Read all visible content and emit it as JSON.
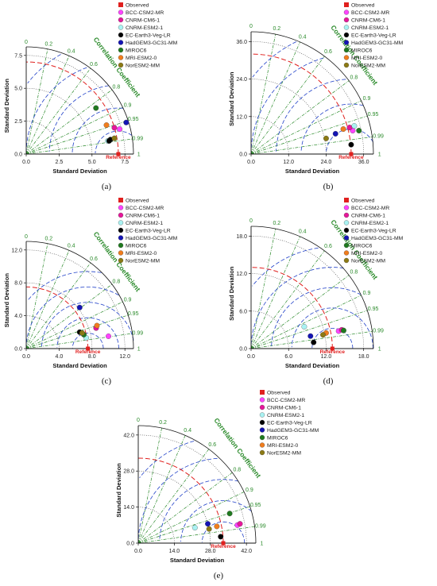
{
  "chart_data": [
    {
      "type": "scatter",
      "subtype": "taylor-diagram",
      "panel_label": "(a)",
      "xlabel": "Standard Deviation",
      "ylabel": "Standard Deviation",
      "correlation_label": "Correlation Coefficient",
      "reference_label": "Reference",
      "std_ticks": [
        "0.0",
        "2.5",
        "5.0",
        "7.5"
      ],
      "y_ticks": [
        "0.0",
        "2.5",
        "5.0",
        "7.5"
      ],
      "corr_ticks": [
        "0",
        "0.2",
        "0.4",
        "0.6",
        "0.8",
        "0.9",
        "0.95",
        "0.99",
        "1"
      ],
      "ref_std": 7.0,
      "points": [
        {
          "name": "BCC-CSM2-MR",
          "x": 7.1,
          "y": 1.9
        },
        {
          "name": "CNRM-CM6-1",
          "x": 6.7,
          "y": 2.0
        },
        {
          "name": "CNRM-ESM2-1",
          "x": 6.2,
          "y": 1.0
        },
        {
          "name": "EC-Earth3-Veg-LR",
          "x": 6.4,
          "y": 1.1
        },
        {
          "name": "HadGEM3-GC31-MM",
          "x": 7.6,
          "y": 2.4
        },
        {
          "name": "MIROC6",
          "x": 5.3,
          "y": 3.5
        },
        {
          "name": "MRI-ESM2-0",
          "x": 6.1,
          "y": 2.2
        },
        {
          "name": "NorESM2-MM",
          "x": 6.7,
          "y": 1.2
        },
        {
          "name": "EC-Earth3-Veg-LR",
          "x": 6.3,
          "y": 1.0
        }
      ]
    },
    {
      "type": "scatter",
      "subtype": "taylor-diagram",
      "panel_label": "(b)",
      "xlabel": "Standard Deviation",
      "ylabel": "Standard Deviation",
      "correlation_label": "Correlation Coefficient",
      "reference_label": "Reference",
      "std_ticks": [
        "0.0",
        "12.0",
        "24.0",
        "36.0"
      ],
      "y_ticks": [
        "0.0",
        "12.0",
        "24.0",
        "36.0"
      ],
      "corr_ticks": [
        "0",
        "0.2",
        "0.4",
        "0.6",
        "0.8",
        "0.9",
        "0.95",
        "0.99",
        "1"
      ],
      "ref_std": 32.0,
      "points": [
        {
          "name": "BCC-CSM2-MR",
          "x": 32.5,
          "y": 7.5
        },
        {
          "name": "CNRM-CM6-1",
          "x": 31.5,
          "y": 8.5
        },
        {
          "name": "CNRM-ESM2-1",
          "x": 33.0,
          "y": 9.0
        },
        {
          "name": "EC-Earth3-Veg-LR",
          "x": 32.0,
          "y": 3.0
        },
        {
          "name": "HadGEM3-GC31-MM",
          "x": 27.0,
          "y": 6.5
        },
        {
          "name": "MIROC6",
          "x": 34.5,
          "y": 7.5
        },
        {
          "name": "MRI-ESM2-0",
          "x": 29.5,
          "y": 8.0
        },
        {
          "name": "NorESM2-MM",
          "x": 24.0,
          "y": 5.0
        }
      ]
    },
    {
      "type": "scatter",
      "subtype": "taylor-diagram",
      "panel_label": "(c)",
      "xlabel": "Standard Deviation",
      "ylabel": "Standard Deviation",
      "correlation_label": "Correlation Coefficient",
      "reference_label": "Reference",
      "std_ticks": [
        "0.0",
        "4.0",
        "8.0",
        "12.0"
      ],
      "y_ticks": [
        "0.0",
        "4.0",
        "8.0",
        "12.0"
      ],
      "corr_ticks": [
        "0",
        "0.2",
        "0.4",
        "0.6",
        "0.8",
        "0.9",
        "0.95",
        "0.99",
        "1"
      ],
      "ref_std": 7.5,
      "points": [
        {
          "name": "BCC-CSM2-MR",
          "x": 10.0,
          "y": 1.5
        },
        {
          "name": "CNRM-CM6-1",
          "x": 8.5,
          "y": 2.5
        },
        {
          "name": "CNRM-ESM2-1",
          "x": 7.3,
          "y": 1.3
        },
        {
          "name": "EC-Earth3-Veg-LR",
          "x": 6.5,
          "y": 2.0
        },
        {
          "name": "HadGEM3-GC31-MM",
          "x": 6.5,
          "y": 5.0
        },
        {
          "name": "MIROC6",
          "x": 7.0,
          "y": 1.7
        },
        {
          "name": "MRI-ESM2-0",
          "x": 8.6,
          "y": 2.8
        },
        {
          "name": "NorESM2-MM",
          "x": 6.8,
          "y": 1.9
        }
      ]
    },
    {
      "type": "scatter",
      "subtype": "taylor-diagram",
      "panel_label": "(d)",
      "xlabel": "Standard Deviation",
      "ylabel": "Standard Deviation",
      "correlation_label": "Correlation Coefficient",
      "reference_label": "Reference",
      "std_ticks": [
        "0.0",
        "6.0",
        "12.0",
        "18.0"
      ],
      "y_ticks": [
        "0.0",
        "6.0",
        "12.0",
        "18.0"
      ],
      "corr_ticks": [
        "0",
        "0.2",
        "0.4",
        "0.6",
        "0.8",
        "0.9",
        "0.95",
        "0.99",
        "1"
      ],
      "ref_std": 13.0,
      "points": [
        {
          "name": "BCC-CSM2-MR",
          "x": 14.0,
          "y": 2.8
        },
        {
          "name": "CNRM-CM6-1",
          "x": 14.5,
          "y": 3.0
        },
        {
          "name": "CNRM-ESM2-1",
          "x": 8.5,
          "y": 3.5
        },
        {
          "name": "EC-Earth3-Veg-LR",
          "x": 10.0,
          "y": 1.0
        },
        {
          "name": "HadGEM3-GC31-MM",
          "x": 9.5,
          "y": 2.0
        },
        {
          "name": "MIROC6",
          "x": 14.8,
          "y": 2.9
        },
        {
          "name": "MRI-ESM2-0",
          "x": 12.0,
          "y": 2.5
        },
        {
          "name": "NorESM2-MM",
          "x": 11.5,
          "y": 2.2
        }
      ]
    },
    {
      "type": "scatter",
      "subtype": "taylor-diagram",
      "panel_label": "(e)",
      "xlabel": "Standard Deviation",
      "ylabel": "Standard Deviation",
      "correlation_label": "Correlation Coefficient",
      "reference_label": "Reference",
      "std_ticks": [
        "0.0",
        "14.0",
        "28.0",
        "42.0"
      ],
      "y_ticks": [
        "0.0",
        "14.0",
        "28.0",
        "42.0"
      ],
      "corr_ticks": [
        "0",
        "0.2",
        "0.4",
        "0.6",
        "0.8",
        "0.9",
        "0.95",
        "0.99",
        "1"
      ],
      "ref_std": 33.0,
      "points": [
        {
          "name": "BCC-CSM2-MR",
          "x": 38.5,
          "y": 7.0
        },
        {
          "name": "CNRM-CM6-1",
          "x": 39.5,
          "y": 7.5
        },
        {
          "name": "CNRM-ESM2-1",
          "x": 22.0,
          "y": 6.0
        },
        {
          "name": "EC-Earth3-Veg-LR",
          "x": 32.0,
          "y": 2.5
        },
        {
          "name": "HadGEM3-GC31-MM",
          "x": 27.0,
          "y": 7.5
        },
        {
          "name": "MIROC6",
          "x": 35.5,
          "y": 11.5
        },
        {
          "name": "MRI-ESM2-0",
          "x": 30.5,
          "y": 6.5
        },
        {
          "name": "NorESM2-MM",
          "x": 27.5,
          "y": 5.5
        }
      ]
    }
  ],
  "legend": [
    {
      "name": "Observed",
      "color": "#e0201e",
      "shape": "square"
    },
    {
      "name": "BCC-CSM2-MR",
      "color": "#ff44ff",
      "shape": "circle"
    },
    {
      "name": "CNRM-CM6-1",
      "color": "#e6179a",
      "shape": "circle"
    },
    {
      "name": "CNRM-ESM2-1",
      "color": "#a9f2f2",
      "shape": "circle"
    },
    {
      "name": "EC-Earth3-Veg-LR",
      "color": "#000000",
      "shape": "circle"
    },
    {
      "name": "HadGEM3-GC31-MM",
      "color": "#1414b4",
      "shape": "circle"
    },
    {
      "name": "MIROC6",
      "color": "#1f7a1f",
      "shape": "circle"
    },
    {
      "name": "MRI-ESM2-0",
      "color": "#f07d1e",
      "shape": "circle"
    },
    {
      "name": "NorESM2-MM",
      "color": "#8c7a14",
      "shape": "circle"
    }
  ],
  "colors": {
    "reference_arc": "#e0201e",
    "rmsd_arcs": "#2040c8",
    "correlation_lines": "#2a8a2a",
    "axes": "#111111"
  }
}
